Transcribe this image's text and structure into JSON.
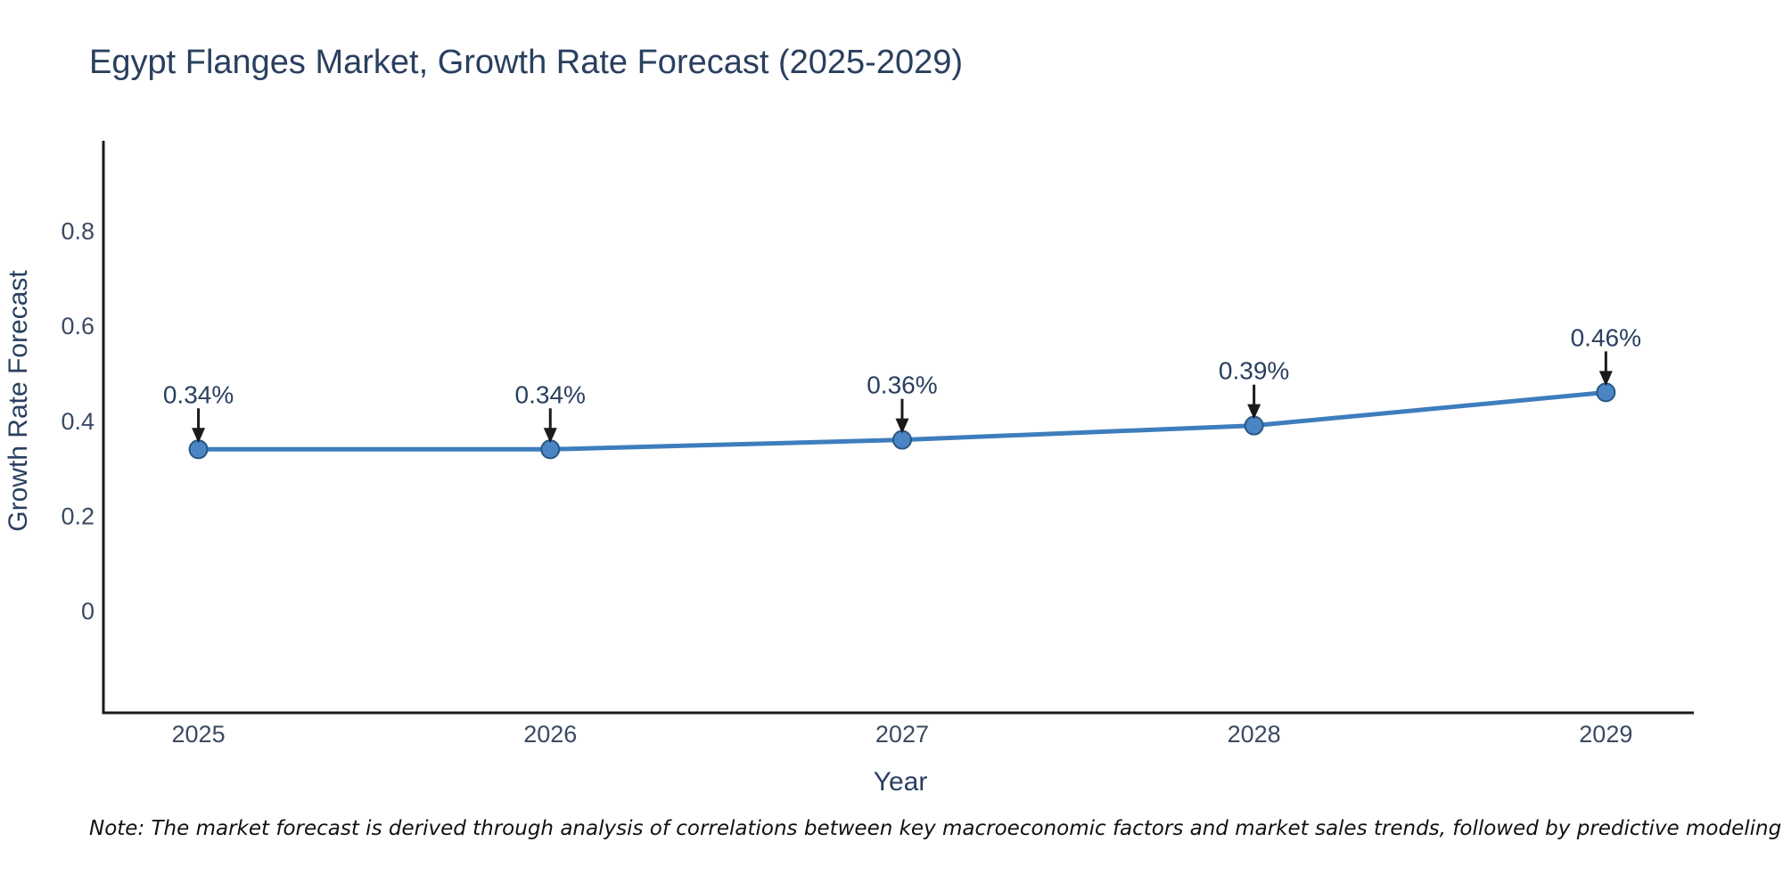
{
  "chart_data": {
    "type": "line",
    "title": "Egypt Flanges Market, Growth Rate Forecast (2025-2029)",
    "xlabel": "Year",
    "ylabel": "Growth Rate Forecast",
    "x": [
      2025,
      2026,
      2027,
      2028,
      2029
    ],
    "x_tick_labels": [
      "2025",
      "2026",
      "2027",
      "2028",
      "2029"
    ],
    "values": [
      0.34,
      0.34,
      0.36,
      0.39,
      0.46
    ],
    "point_labels": [
      "0.34%",
      "0.34%",
      "0.36%",
      "0.39%",
      "0.46%"
    ],
    "y_ticks": [
      0,
      0.2,
      0.4,
      0.6,
      0.8
    ],
    "y_tick_labels": [
      "0",
      "0.2",
      "0.4",
      "0.6",
      "0.8"
    ],
    "xlim": [
      2024.73,
      2029.25
    ],
    "ylim": [
      -0.2,
      1.0
    ],
    "grid": false,
    "legend_position": "none",
    "colors": {
      "line": "#3e7dbd",
      "marker_fill": "#4a86c4",
      "marker_edge": "#2a5783",
      "axis": "#1a1a1a",
      "annotation": "#1a1a1a",
      "title_text": "#2a3f5f",
      "tick_text": "#3c4a63"
    }
  },
  "note": "Note: The market forecast is derived through analysis of correlations between key macroeconomic factors and market sales trends, followed by predictive modeling to project future sales growth."
}
